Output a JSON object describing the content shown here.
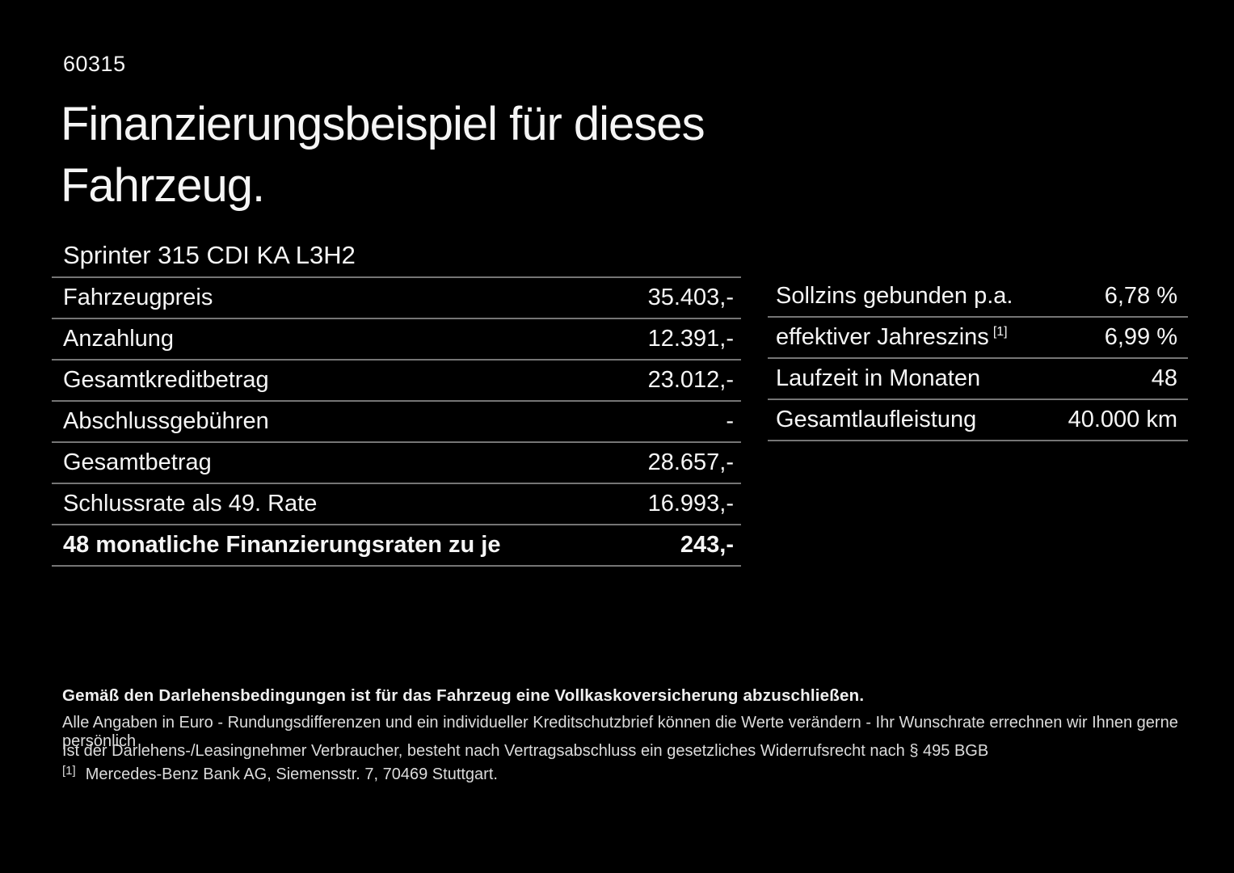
{
  "meta": {
    "ref_id": "60315"
  },
  "header": {
    "title_line1": "Finanzierungsbeispiel für dieses",
    "title_line2": "Fahrzeug.",
    "subtitle": "Sprinter 315 CDI KA L3H2"
  },
  "tables": {
    "left": {
      "rows": [
        {
          "label": "Fahrzeugpreis",
          "value": "35.403,-"
        },
        {
          "label": "Anzahlung",
          "value": "12.391,-"
        },
        {
          "label": "Gesamtkreditbetrag",
          "value": "23.012,-"
        },
        {
          "label": "Abschlussgebühren",
          "value": "-"
        },
        {
          "label": "Gesamtbetrag",
          "value": "28.657,-"
        },
        {
          "label": "Schlussrate als 49. Rate",
          "value": "16.993,-"
        },
        {
          "label": "48 monatliche Finanzierungsraten zu je",
          "value": "243,-"
        }
      ]
    },
    "right": {
      "rows": [
        {
          "label": "Sollzins gebunden p.a.",
          "value": "6,78 %"
        },
        {
          "label": "effektiver Jahreszins",
          "sup": "[1]",
          "value": "6,99 %"
        },
        {
          "label": "Laufzeit in Monaten",
          "value": "48"
        },
        {
          "label": "Gesamtlaufleistung",
          "value": "40.000 km"
        }
      ]
    }
  },
  "notes": {
    "insurance_bold": "Gemäß den Darlehensbedingungen ist für das Fahrzeug eine Vollkaskoversicherung abzuschließen.",
    "euro_note": "Alle Angaben in Euro - Rundungsdifferenzen und ein individueller Kreditschutzbrief können die Werte verändern - Ihr Wunschrate errechnen wir Ihnen gerne persönlich",
    "withdrawal_note": "Ist der Darlehens-/Leasingnehmer Verbraucher, besteht nach Vertragsabschluss ein gesetzliches Widerrufsrecht nach § 495 BGB",
    "footnote_marker": "[1]",
    "footnote_text": "Mercedes-Benz Bank AG, Siemensstr. 7, 70469 Stuttgart."
  },
  "colors": {
    "background": "#000000",
    "text": "#f5f5f5",
    "divider": "#757575"
  }
}
